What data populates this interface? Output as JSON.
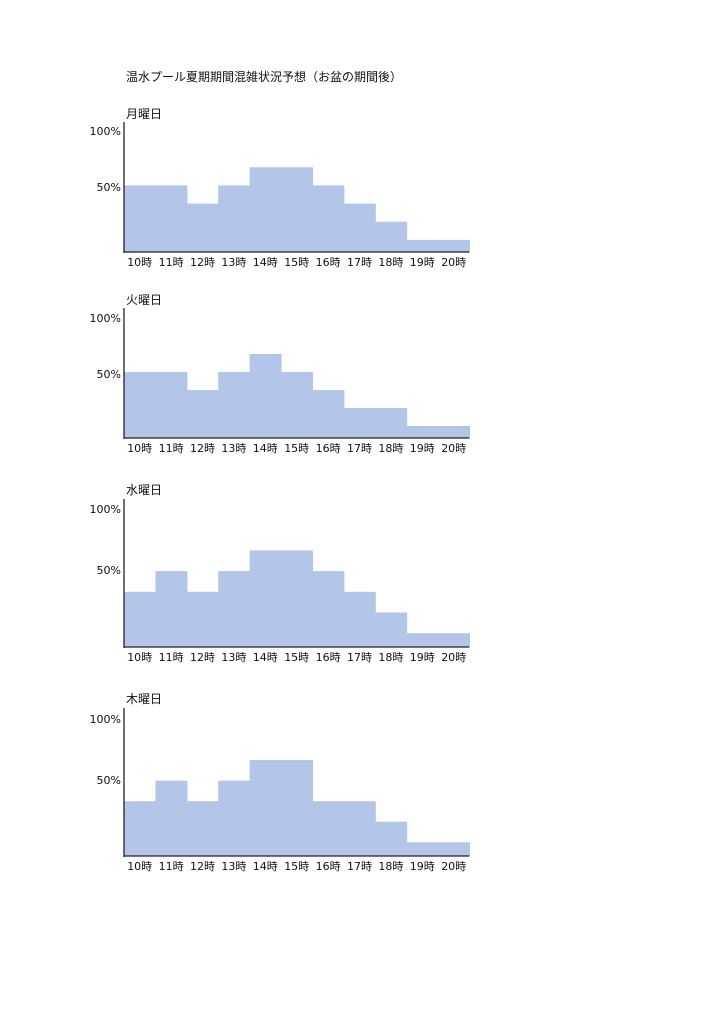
{
  "page": {
    "title": "温水プール夏期期間混雑状況予想（お盆の期間後）"
  },
  "colors": {
    "bar": "#b3c5e8",
    "axis": "#222222"
  },
  "chart_data": [
    {
      "type": "bar",
      "title": "月曜日",
      "categories": [
        "10時",
        "11時",
        "12時",
        "13時",
        "14時",
        "15時",
        "16時",
        "17時",
        "18時",
        "19時",
        "20時"
      ],
      "values": [
        55,
        55,
        40,
        55,
        70,
        70,
        55,
        40,
        25,
        10,
        10
      ],
      "yticks": [
        "100%",
        "50%"
      ],
      "ylim": [
        0,
        100
      ],
      "grid": false
    },
    {
      "type": "bar",
      "title": "火曜日",
      "categories": [
        "10時",
        "11時",
        "12時",
        "13時",
        "14時",
        "15時",
        "16時",
        "17時",
        "18時",
        "19時",
        "20時"
      ],
      "values": [
        55,
        55,
        40,
        55,
        70,
        55,
        40,
        25,
        25,
        10,
        10
      ],
      "yticks": [
        "100%",
        "50%"
      ],
      "ylim": [
        0,
        100
      ],
      "grid": false
    },
    {
      "type": "bar",
      "title": "水曜日",
      "categories": [
        "10時",
        "11時",
        "12時",
        "13時",
        "14時",
        "15時",
        "16時",
        "17時",
        "18時",
        "19時",
        "20時"
      ],
      "values": [
        40,
        55,
        40,
        55,
        70,
        70,
        55,
        40,
        25,
        10,
        10
      ],
      "yticks": [
        "100%",
        "50%"
      ],
      "ylim": [
        0,
        100
      ],
      "grid": false
    },
    {
      "type": "bar",
      "title": "木曜日",
      "categories": [
        "10時",
        "11時",
        "12時",
        "13時",
        "14時",
        "15時",
        "16時",
        "17時",
        "18時",
        "19時",
        "20時"
      ],
      "values": [
        40,
        55,
        40,
        55,
        70,
        70,
        40,
        40,
        25,
        10,
        10
      ],
      "yticks": [
        "100%",
        "50%"
      ],
      "ylim": [
        0,
        100
      ],
      "grid": false
    }
  ]
}
